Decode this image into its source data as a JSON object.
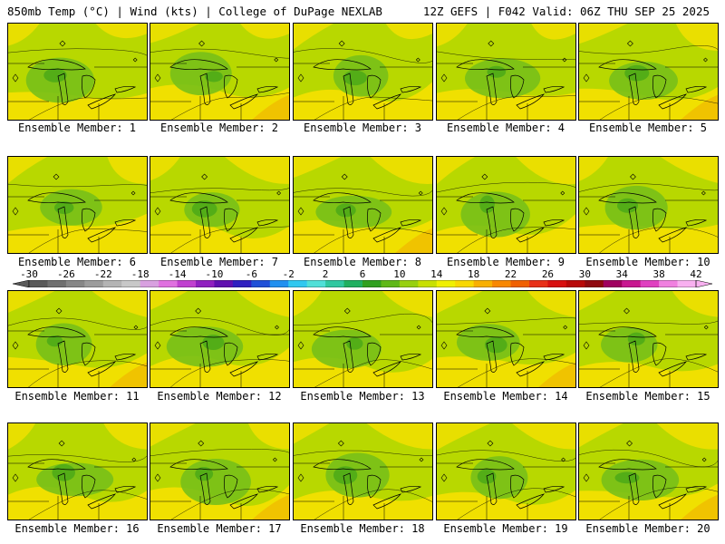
{
  "header": {
    "left": "850mb Temp (°C) | Wind (kts) | College of DuPage NEXLAB",
    "right": "12Z GEFS | F042 Valid: 06Z THU SEP 25 2025"
  },
  "panels": [
    {
      "label": "Ensemble Member: 1"
    },
    {
      "label": "Ensemble Member: 2"
    },
    {
      "label": "Ensemble Member: 3"
    },
    {
      "label": "Ensemble Member: 4"
    },
    {
      "label": "Ensemble Member: 5"
    },
    {
      "label": "Ensemble Member: 6"
    },
    {
      "label": "Ensemble Member: 7"
    },
    {
      "label": "Ensemble Member: 8"
    },
    {
      "label": "Ensemble Member: 9"
    },
    {
      "label": "Ensemble Member: 10"
    },
    {
      "label": "Ensemble Member: 11"
    },
    {
      "label": "Ensemble Member: 12"
    },
    {
      "label": "Ensemble Member: 13"
    },
    {
      "label": "Ensemble Member: 14"
    },
    {
      "label": "Ensemble Member: 15"
    },
    {
      "label": "Ensemble Member: 16"
    },
    {
      "label": "Ensemble Member: 17"
    },
    {
      "label": "Ensemble Member: 18"
    },
    {
      "label": "Ensemble Member: 19"
    },
    {
      "label": "Ensemble Member: 20"
    }
  ],
  "colorbar": {
    "labels": [
      "-30",
      "-26",
      "-22",
      "-18",
      "-14",
      "-10",
      "-6",
      "-2",
      "2",
      "6",
      "10",
      "14",
      "18",
      "22",
      "26",
      "30",
      "34",
      "38",
      "42"
    ],
    "colors": [
      "#5a5a5a",
      "#707070",
      "#878787",
      "#9c9c9c",
      "#b4b4b4",
      "#c8c8c8",
      "#d8a0e0",
      "#e070e0",
      "#c040d0",
      "#9020c0",
      "#6010b0",
      "#3020c0",
      "#2050d8",
      "#2090f0",
      "#30c8f0",
      "#50e0d8",
      "#30c8a0",
      "#20b060",
      "#30a020",
      "#60b818",
      "#98d010",
      "#c8e000",
      "#f0f000",
      "#f8d800",
      "#f8b000",
      "#f88800",
      "#f06000",
      "#e83018",
      "#d81010",
      "#b80808",
      "#900810",
      "#a00060",
      "#c81890",
      "#e040c0",
      "#f080e0",
      "#f8b0f0"
    ]
  },
  "map_colors": {
    "base_green": "#b8d800",
    "warm_yellow": "#f0e000",
    "cool_green": "#78c018",
    "dark_green": "#48a818",
    "orange": "#f0c000"
  }
}
